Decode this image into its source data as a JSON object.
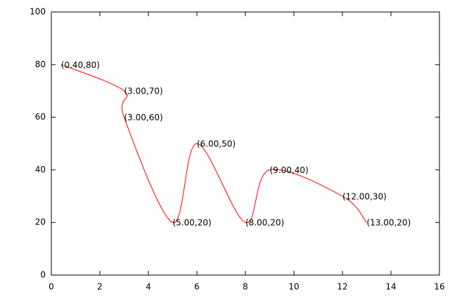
{
  "chart_data": {
    "type": "line",
    "x": [
      0.4,
      3,
      3,
      5,
      6,
      8,
      9,
      12,
      13
    ],
    "series": [
      {
        "color": "#ff0000",
        "values": [
          80,
          70,
          60,
          20,
          50,
          20,
          40,
          30,
          20
        ],
        "value_labels": [
          "(0.40,80)",
          "(3.00,70)",
          "(3.00,60)",
          "(5.00,20)",
          "(6.00,50)",
          "(8.00,20)",
          "(9.00,40)",
          "(12.00,30)",
          "(13.00,20)"
        ]
      }
    ],
    "xlim": [
      0,
      16
    ],
    "xticks": [
      0,
      2,
      4,
      6,
      8,
      10,
      12,
      14,
      16
    ],
    "ylim": [
      0,
      100
    ],
    "yticks": [
      0,
      20,
      40,
      60,
      80,
      100
    ],
    "grid": false
  }
}
